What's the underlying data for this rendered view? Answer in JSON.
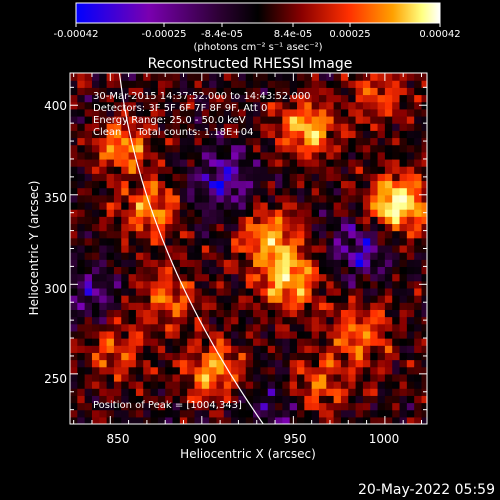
{
  "colorbar": {
    "tick_labels": [
      "-0.00042",
      "-0.00025",
      "-8.4e-05",
      "8.4e-05",
      "0.00025",
      "0.00042"
    ],
    "unit_label": "(photons cm⁻² s⁻¹ asec⁻²)",
    "colors": [
      "#0000ff",
      "#7a00b0",
      "#2a0030",
      "#000000",
      "#8a0000",
      "#ff3000",
      "#ffa000",
      "#ffff80",
      "#ffffff"
    ]
  },
  "figure": {
    "title": "Reconstructed RHESSI Image",
    "xlabel": "Heliocentric X (arcsec)",
    "ylabel": "Heliocentric Y (arcsec)",
    "x_ticks": [
      "850",
      "900",
      "950",
      "1000"
    ],
    "y_ticks": [
      "250",
      "300",
      "350",
      "400"
    ],
    "info_lines": [
      "30-Mar-2015 14:37:52.000 to 14:43:52.000",
      "Detectors: 3F 5F 6F 7F 8F 9F, Att 0",
      "Energy Range: 25.0 - 50.0 keV",
      "Clean     Total counts: 1.18E+04"
    ],
    "peak_label": "Position of Peak = [1004,343]",
    "date_stamp": "20-May-2022 05:59"
  },
  "chart_data": {
    "type": "heatmap",
    "title": "Reconstructed RHESSI Image",
    "xlabel": "Heliocentric X (arcsec)",
    "ylabel": "Heliocentric Y (arcsec)",
    "xlim": [
      828,
      1023
    ],
    "ylim": [
      222,
      418
    ],
    "x_ticks": [
      850,
      900,
      950,
      1000
    ],
    "y_ticks": [
      250,
      300,
      350,
      400
    ],
    "colorbar_range": [
      -0.00042,
      0.00042
    ],
    "colorbar_ticks": [
      -0.00042,
      -0.00025,
      -8.4e-05,
      8.4e-05,
      0.00025,
      0.00042
    ],
    "peak_position": [
      1004,
      343
    ],
    "hot_regions": [
      {
        "x": 1004,
        "y": 343,
        "level": 1.0
      },
      {
        "x": 955,
        "y": 385,
        "level": 0.7
      },
      {
        "x": 945,
        "y": 300,
        "level": 0.75
      },
      {
        "x": 935,
        "y": 325,
        "level": 0.65
      },
      {
        "x": 870,
        "y": 340,
        "level": 0.6
      },
      {
        "x": 855,
        "y": 375,
        "level": 0.55
      },
      {
        "x": 880,
        "y": 290,
        "level": 0.5
      },
      {
        "x": 905,
        "y": 250,
        "level": 0.6
      },
      {
        "x": 985,
        "y": 270,
        "level": 0.55
      },
      {
        "x": 995,
        "y": 405,
        "level": 0.45
      },
      {
        "x": 960,
        "y": 240,
        "level": 0.5
      },
      {
        "x": 850,
        "y": 260,
        "level": 0.4
      }
    ],
    "cold_regions": [
      {
        "x": 910,
        "y": 355,
        "level": -0.6
      },
      {
        "x": 985,
        "y": 320,
        "level": -0.5
      },
      {
        "x": 835,
        "y": 295,
        "level": -0.4
      },
      {
        "x": 940,
        "y": 230,
        "level": -0.4
      }
    ]
  }
}
